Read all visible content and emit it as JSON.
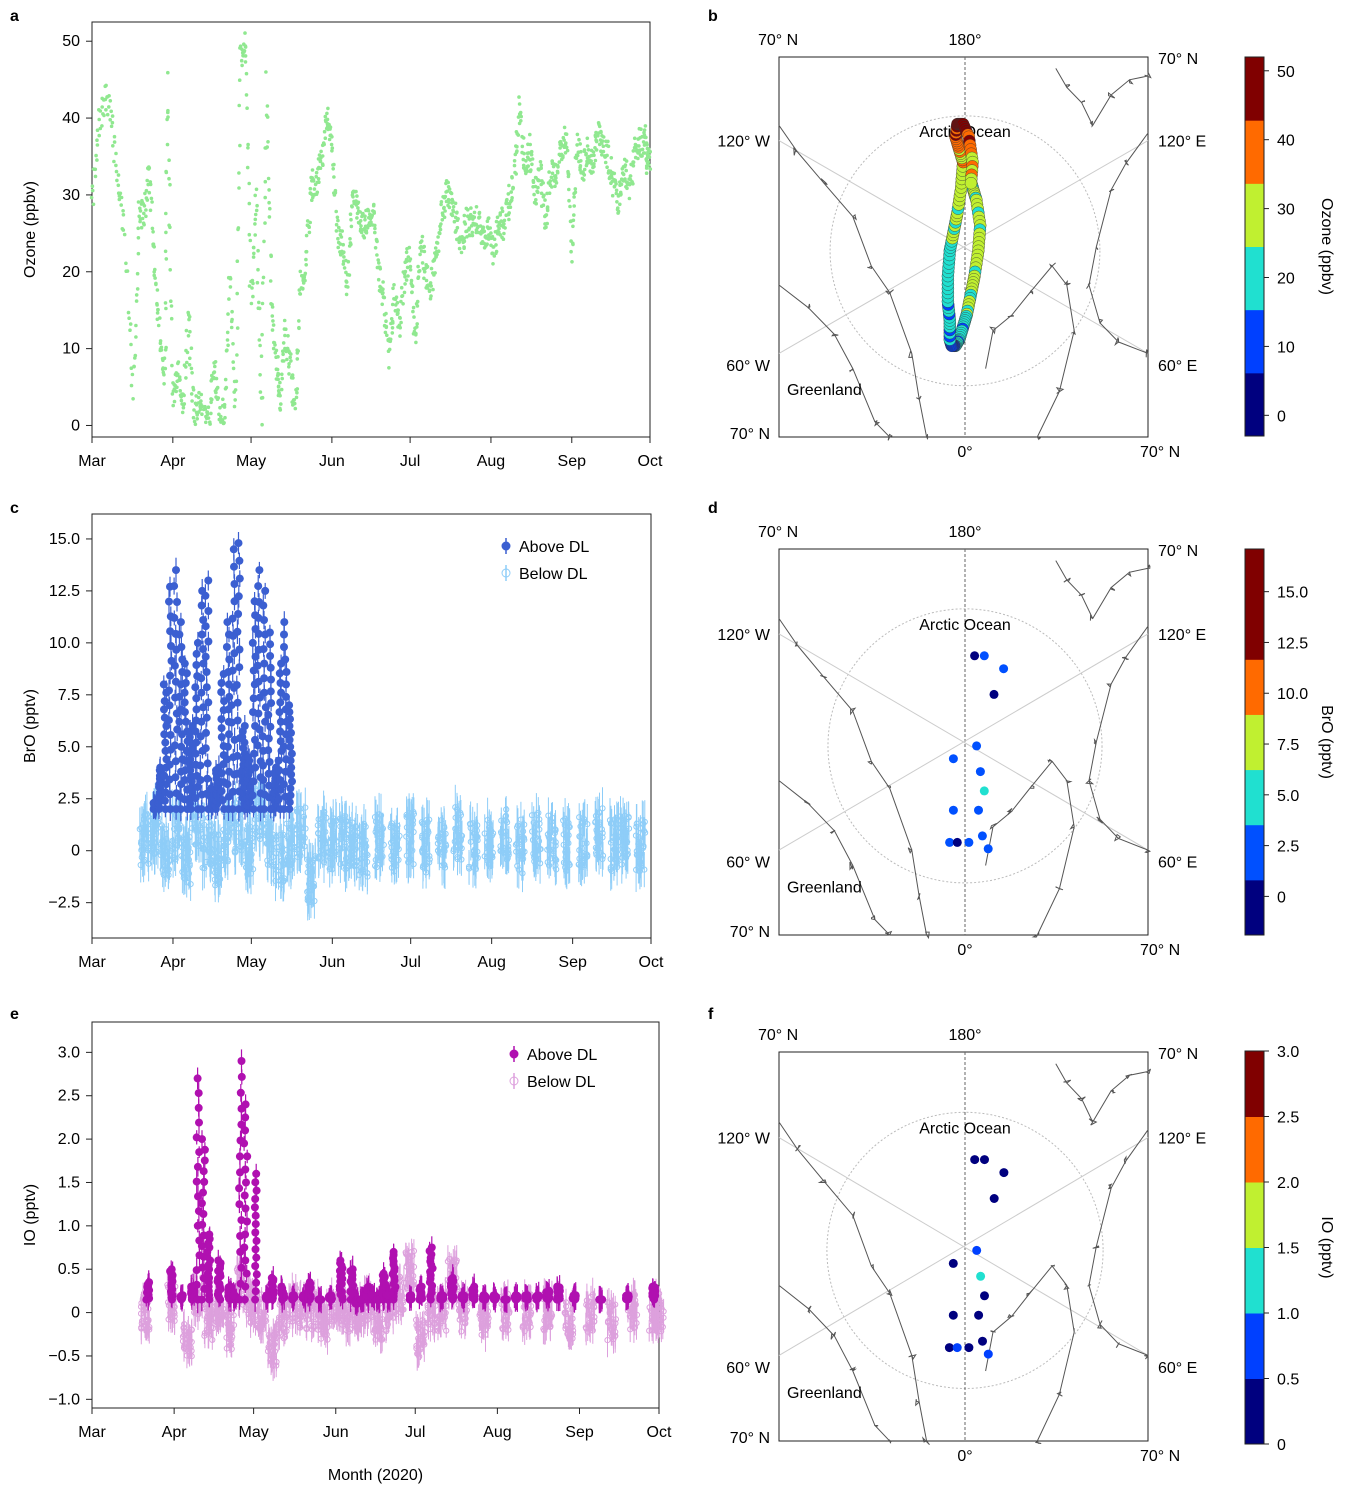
{
  "panels": [
    "a",
    "b",
    "c",
    "d",
    "e",
    "f"
  ],
  "chart_data": [
    {
      "panel": "a",
      "type": "scatter",
      "ylabel": "Ozone (ppbv)",
      "xlabel": "",
      "ylim": [
        -1.5,
        52.5
      ],
      "yticks": [
        0,
        10,
        20,
        30,
        40,
        50
      ],
      "xticks": [
        "Mar",
        "Apr",
        "May",
        "Jun",
        "Jul",
        "Aug",
        "Sep",
        "Oct"
      ],
      "color": "#90e890",
      "series": [
        {
          "x": [
            0,
            3,
            6,
            9,
            12,
            16,
            18,
            20,
            22,
            24,
            26,
            28,
            29,
            31,
            33,
            35,
            37,
            39,
            41,
            43,
            45,
            47,
            49,
            51,
            53,
            55,
            57,
            59,
            61,
            63,
            65,
            67,
            69,
            71,
            72,
            74,
            76,
            78,
            80,
            82,
            84,
            86,
            88,
            90,
            92,
            94,
            96,
            98,
            100,
            102,
            104,
            106,
            108,
            110,
            112,
            114,
            116,
            118,
            120,
            122,
            124,
            126,
            128,
            130,
            132,
            134,
            136,
            138,
            140,
            142,
            144,
            146,
            148,
            150,
            152,
            154,
            156,
            158,
            160,
            162,
            164,
            166,
            168,
            170,
            172,
            174,
            176,
            178,
            180,
            182,
            184,
            186,
            188,
            190,
            192,
            194,
            196,
            198,
            200,
            202,
            204,
            206,
            208,
            210,
            212,
            213
          ],
          "y": [
            28,
            40,
            43,
            35,
            26,
            4,
            28,
            27,
            33,
            20,
            12,
            6,
            45,
            3,
            8,
            2,
            14,
            1,
            3,
            0.5,
            1,
            8,
            0.4,
            2,
            20,
            0.3,
            48,
            50,
            15,
            30,
            2,
            44,
            15,
            8,
            3,
            12,
            8,
            2,
            18,
            21,
            31,
            32,
            34,
            40,
            37,
            26,
            23,
            18,
            31,
            28,
            26,
            27,
            28,
            20,
            16,
            9,
            17,
            13,
            20,
            22,
            10,
            24,
            20,
            18,
            22,
            28,
            30,
            29,
            26,
            24,
            27,
            26,
            27,
            24,
            26,
            22,
            27,
            26,
            29,
            33,
            41,
            34,
            36,
            30,
            33,
            26,
            33,
            32,
            36,
            38,
            22,
            37,
            33,
            36,
            34,
            38,
            36,
            35,
            31,
            29,
            34,
            30,
            36,
            37,
            37,
            34
          ]
        }
      ]
    },
    {
      "panel": "b",
      "type": "map",
      "labels": {
        "top_left": "70° N",
        "top_center": "180°",
        "top_right": "70° N",
        "left_upper": "120° W",
        "right_upper": "120° E",
        "left_lower": "60° W",
        "right_lower": "60° E",
        "bottom_left": "70° N",
        "bottom_center": "0°",
        "bottom_right": "70° N",
        "ocean": "Arctic Ocean",
        "land": "Greenland"
      },
      "colorbar": {
        "label": "Ozone (ppbv)",
        "ticks": [
          "0",
          "10",
          "20",
          "30",
          "40",
          "50"
        ],
        "range": [
          -3,
          52
        ],
        "levels": 6
      },
      "track": [
        [
          2,
          82
        ],
        [
          4,
          80
        ],
        [
          6,
          78
        ],
        [
          8,
          74
        ],
        [
          7,
          70
        ],
        [
          5,
          66
        ],
        [
          3,
          63
        ],
        [
          1,
          60
        ],
        [
          -1,
          58
        ],
        [
          -3,
          56
        ],
        [
          -5,
          55
        ],
        [
          -7,
          55
        ],
        [
          -8,
          56
        ],
        [
          -8,
          59
        ],
        [
          -9,
          62
        ],
        [
          -9,
          66
        ],
        [
          -8,
          70
        ],
        [
          -6,
          73
        ],
        [
          -4,
          76
        ],
        [
          -2,
          80
        ],
        [
          -1,
          84
        ],
        [
          -3,
          86
        ],
        [
          -5,
          88
        ],
        [
          -4,
          90
        ],
        [
          -1,
          90
        ],
        [
          2,
          88
        ],
        [
          4,
          84
        ],
        [
          3,
          80
        ]
      ],
      "track_values": [
        22,
        24,
        26,
        28,
        30,
        27,
        25,
        22,
        20,
        18,
        15,
        12,
        14,
        16,
        18,
        20,
        22,
        24,
        26,
        28,
        30,
        35,
        40,
        45,
        48,
        42,
        36,
        30
      ]
    },
    {
      "panel": "c",
      "type": "scatter",
      "ylabel": "BrO (pptv)",
      "xlabel": "",
      "ylim": [
        -4.2,
        16.2
      ],
      "yticks": [
        "−2.5",
        "0",
        "2.5",
        "5.0",
        "7.5",
        "10.0",
        "12.5",
        "15.0"
      ],
      "ytick_values": [
        -2.5,
        0,
        2.5,
        5.0,
        7.5,
        10.0,
        12.5,
        15.0
      ],
      "xticks": [
        "Mar",
        "Apr",
        "May",
        "Jun",
        "Jul",
        "Aug",
        "Sep",
        "Oct"
      ],
      "legend": [
        "Above DL",
        "Below DL"
      ],
      "series": [
        {
          "name": "Above DL",
          "color": "#3b5fd1",
          "x": [
            24,
            26,
            28,
            30,
            32,
            34,
            36,
            38,
            40,
            42,
            44,
            46,
            48,
            50,
            52,
            54,
            56,
            58,
            60,
            62,
            64,
            66,
            68,
            70,
            72,
            74,
            76
          ],
          "y": [
            2.3,
            4.0,
            8.0,
            12.7,
            13.5,
            11.0,
            9.0,
            6.0,
            10.0,
            12.5,
            13.0,
            3.0,
            4.0,
            8.5,
            11.0,
            14.5,
            14.8,
            6.0,
            4.5,
            12.0,
            13.5,
            12.5,
            10.5,
            4.0,
            9.0,
            11.0,
            7.0
          ]
        },
        {
          "name": "Below DL",
          "color": "#8ecdf8",
          "x": [
            20,
            24,
            28,
            32,
            36,
            40,
            44,
            48,
            52,
            56,
            60,
            64,
            68,
            72,
            76,
            80,
            84,
            88,
            92,
            96,
            100,
            104,
            110,
            116,
            122,
            128,
            134,
            140,
            146,
            152,
            158,
            164,
            170,
            176,
            182,
            188,
            194,
            200,
            204,
            210
          ],
          "y": [
            0.5,
            1.0,
            0.0,
            0.8,
            -0.5,
            1.5,
            0.3,
            -0.4,
            0.7,
            1.2,
            0.0,
            1.8,
            0.5,
            -0.5,
            0.2,
            0.8,
            -1.5,
            0.6,
            0.3,
            0.4,
            0.2,
            0.0,
            0.5,
            0.3,
            0.6,
            0.2,
            0.4,
            0.8,
            0.3,
            0.5,
            0.7,
            0.2,
            0.6,
            0.4,
            0.3,
            0.5,
            0.8,
            0.3,
            0.4,
            0.2
          ]
        }
      ]
    },
    {
      "panel": "d",
      "type": "map",
      "labels": {
        "top_left": "70° N",
        "top_center": "180°",
        "top_right": "70° N",
        "left_upper": "120° W",
        "right_upper": "120° E",
        "left_lower": "60° W",
        "right_lower": "60° E",
        "bottom_left": "70° N",
        "bottom_center": "0°",
        "bottom_right": "70° N",
        "ocean": "Arctic Ocean",
        "land": "Greenland"
      },
      "colorbar": {
        "label": "BrO (pptv)",
        "ticks": [
          "0",
          "2.5",
          "5.0",
          "7.5",
          "10.0",
          "12.5",
          "15.0"
        ],
        "range": [
          -1.9,
          17.1
        ],
        "levels": 7
      },
      "points": [
        [
          5,
          84,
          0.5
        ],
        [
          10,
          84,
          1
        ],
        [
          20,
          82,
          2
        ],
        [
          15,
          78,
          0.5
        ],
        [
          6,
          70,
          1
        ],
        [
          8,
          66,
          2
        ],
        [
          10,
          63,
          6
        ],
        [
          7,
          60,
          2
        ],
        [
          9,
          56,
          1
        ],
        [
          -6,
          68,
          3
        ],
        [
          -6,
          60,
          2
        ],
        [
          -8,
          55,
          1
        ],
        [
          -4,
          55,
          0.5
        ],
        [
          2,
          55,
          2
        ],
        [
          12,
          54,
          2
        ]
      ]
    },
    {
      "panel": "e",
      "type": "scatter",
      "ylabel": "IO (pptv)",
      "xlabel": "Month (2020)",
      "ylim": [
        -1.1,
        3.35
      ],
      "yticks": [
        "−1.0",
        "−0.5",
        "0",
        "0.5",
        "1.0",
        "1.5",
        "2.0",
        "2.5",
        "3.0"
      ],
      "ytick_values": [
        -1.0,
        -0.5,
        0,
        0.5,
        1.0,
        1.5,
        2.0,
        2.5,
        3.0
      ],
      "xticks": [
        "Mar",
        "Apr",
        "May",
        "Jun",
        "Jul",
        "Aug",
        "Sep",
        "Oct"
      ],
      "legend": [
        "Above DL",
        "Below DL"
      ],
      "series": [
        {
          "name": "Above DL",
          "color": "#b010b0",
          "x": [
            21,
            30,
            34,
            38,
            40,
            42,
            44,
            48,
            52,
            54,
            56,
            58,
            62,
            66,
            68,
            72,
            76,
            80,
            82,
            86,
            90,
            94,
            98,
            100,
            102,
            104,
            106,
            108,
            110,
            112,
            114,
            120,
            124,
            128,
            132,
            136,
            140,
            144,
            148,
            152,
            156,
            160,
            164,
            168,
            172,
            176,
            182,
            192,
            202,
            212
          ],
          "y": [
            0.35,
            0.5,
            0.2,
            0.3,
            2.7,
            2.0,
            0.9,
            0.6,
            0.3,
            0.2,
            2.9,
            2.4,
            1.6,
            0.2,
            0.4,
            0.3,
            0.2,
            0.2,
            0.35,
            0.15,
            0.2,
            0.6,
            0.5,
            0.1,
            0.15,
            0.3,
            0.2,
            0.15,
            0.45,
            0.2,
            0.7,
            0.2,
            0.3,
            0.75,
            0.2,
            0.4,
            0.2,
            0.3,
            0.2,
            0.2,
            0.15,
            0.2,
            0.2,
            0.2,
            0.25,
            0.3,
            0.2,
            0.15,
            0.2,
            0.3
          ]
        },
        {
          "name": "Below DL",
          "color": "#dda0dd",
          "x": [
            20,
            30,
            36,
            40,
            44,
            48,
            52,
            56,
            60,
            64,
            68,
            72,
            76,
            80,
            84,
            88,
            92,
            96,
            100,
            104,
            108,
            112,
            116,
            120,
            124,
            128,
            132,
            136,
            140,
            148,
            156,
            164,
            172,
            180,
            188,
            196,
            204,
            212,
            214
          ],
          "y": [
            0.0,
            0.1,
            -0.3,
            0.2,
            -0.1,
            0.1,
            -0.2,
            0.3,
            0.1,
            0.0,
            -0.4,
            -0.1,
            0.1,
            0.0,
            0.0,
            -0.1,
            0.1,
            0.0,
            0.0,
            0.1,
            -0.1,
            0.0,
            0.2,
            0.5,
            -0.3,
            0.0,
            0.0,
            0.4,
            0.0,
            -0.1,
            0.0,
            0.0,
            0.0,
            -0.1,
            0.0,
            -0.1,
            0.0,
            0.0,
            0.0
          ]
        }
      ]
    },
    {
      "panel": "f",
      "type": "map",
      "labels": {
        "top_left": "70° N",
        "top_center": "180°",
        "top_right": "70° N",
        "left_upper": "120° W",
        "right_upper": "120° E",
        "left_lower": "60° W",
        "right_lower": "60° E",
        "bottom_left": "70° N",
        "bottom_center": "0°",
        "bottom_right": "70° N",
        "ocean": "Arctic Ocean",
        "land": "Greenland"
      },
      "colorbar": {
        "label": "IO (pptv)",
        "ticks": [
          "0",
          "0.5",
          "1.0",
          "1.5",
          "2.0",
          "2.5",
          "3.0"
        ],
        "range": [
          0,
          3.0
        ],
        "levels": 6
      },
      "points": [
        [
          5,
          84,
          0.2
        ],
        [
          10,
          84,
          0.3
        ],
        [
          20,
          82,
          0.2
        ],
        [
          15,
          78,
          0.3
        ],
        [
          6,
          70,
          0.6
        ],
        [
          8,
          66,
          1.3
        ],
        [
          10,
          63,
          0.4
        ],
        [
          7,
          60,
          0.2
        ],
        [
          9,
          56,
          0.3
        ],
        [
          -6,
          68,
          0.2
        ],
        [
          -6,
          60,
          0.3
        ],
        [
          -8,
          55,
          0.2
        ],
        [
          -4,
          55,
          0.6
        ],
        [
          2,
          55,
          0.3
        ],
        [
          12,
          54,
          0.7
        ]
      ]
    }
  ]
}
